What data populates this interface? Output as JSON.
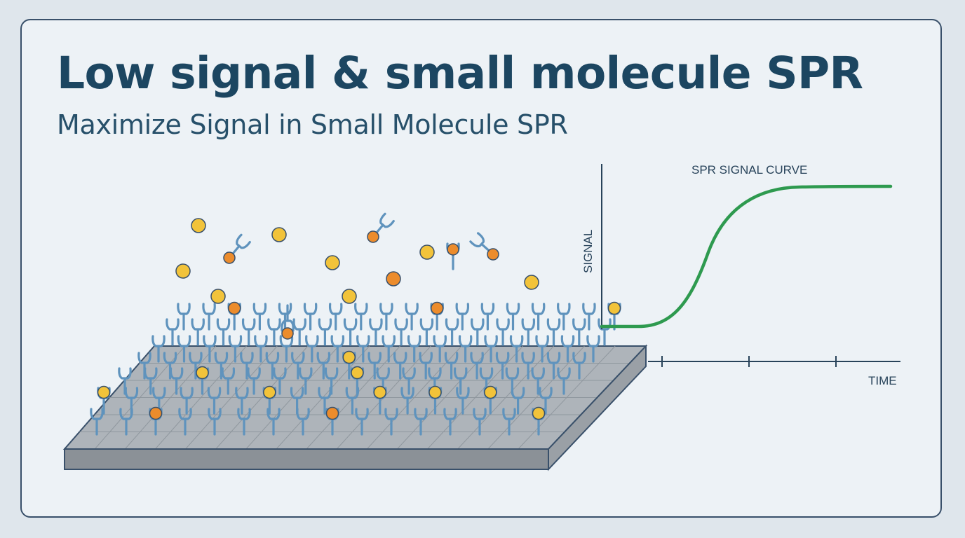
{
  "title": "Low signal & small molecule SPR",
  "subtitle": "Maximize Signal in Small Molecule SPR",
  "graph": {
    "label": "SPR SIGNAL CURVE",
    "y_axis_label": "SIGNAL",
    "x_axis_label": "TIME"
  },
  "colors": {
    "title": "#1c4661",
    "outline": "#39506a",
    "antibody": "#5f93bd",
    "curve": "#2e9a4f",
    "molecule_yellow": "#f2c33a",
    "molecule_orange": "#ec8c2c",
    "chip_top": "#aeb4ba",
    "chip_side": "#8b9197"
  }
}
